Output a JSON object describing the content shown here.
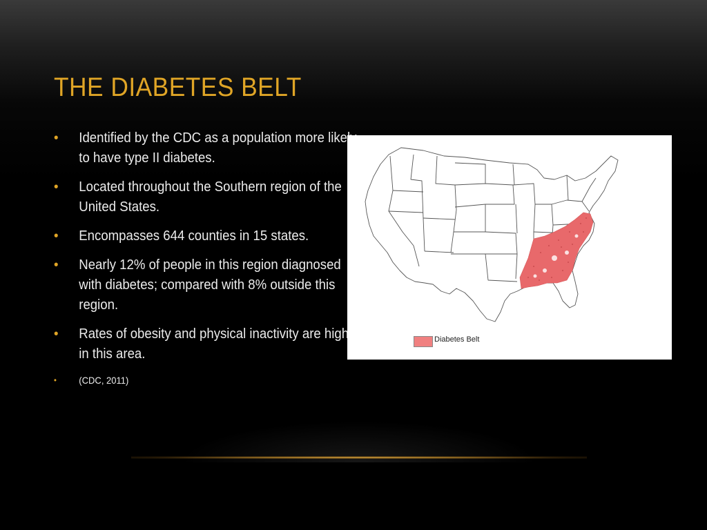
{
  "slide": {
    "title": "THE DIABETES BELT",
    "bullets": [
      {
        "marker": "•",
        "text": "Identified by the CDC as a population more likely to have type II diabetes."
      },
      {
        "marker": "•",
        "text": "Located throughout the Southern region of the United States."
      },
      {
        "marker": "•",
        "text": "Encompasses 644 counties in 15 states."
      },
      {
        "marker": "•",
        "text": "Nearly 12% of people in this region diagnosed with diabetes; compared with 8% outside this region."
      },
      {
        "marker": "•",
        "text": "Rates of obesity and physical inactivity are high in this area."
      },
      {
        "marker": "•",
        "text": "(CDC, 2011)"
      }
    ]
  },
  "map": {
    "legend_label": "Diabetes Belt",
    "legend_color": "#f08080",
    "belt_color": "#e8696b"
  },
  "colors": {
    "title": "#e0a526",
    "bullet_marker": "#e0a526",
    "body_text": "#ececec",
    "accent_line": "#d9a441"
  }
}
